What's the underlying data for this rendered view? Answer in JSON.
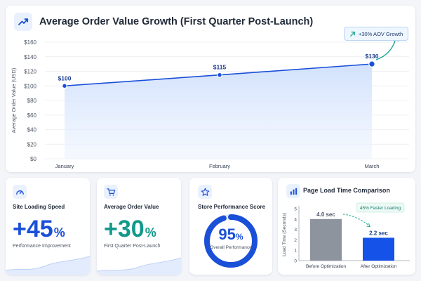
{
  "main": {
    "title": "Average Order Value Growth (First Quarter Post-Launch)",
    "badge": "+30% AOV Growth"
  },
  "chart_data": [
    {
      "type": "area",
      "title": "Average Order Value Growth (First Quarter Post-Launch)",
      "ylabel": "Average Order Value (USD)",
      "categories": [
        "January",
        "February",
        "March"
      ],
      "values": [
        100,
        115,
        130
      ],
      "data_labels": [
        "$100",
        "$115",
        "$130"
      ],
      "yticks": [
        "$0",
        "$20",
        "$40",
        "$60",
        "$80",
        "$100",
        "$120",
        "$140",
        "$160"
      ],
      "ylim": [
        0,
        160
      ],
      "grid": true,
      "annotation": "+30% AOV Growth",
      "colors": {
        "line": "#1a4fd8",
        "fill": "#dbe8fd",
        "arrow": "#14a58c"
      }
    },
    {
      "type": "bar",
      "title": "Page Load Time Comparison",
      "ylabel": "Load Time (Seconds)",
      "categories": [
        "Before Optimization",
        "After Optimization"
      ],
      "values": [
        4.0,
        2.2
      ],
      "data_labels": [
        "4.0 sec",
        "2.2 sec"
      ],
      "yticks": [
        "0",
        "1",
        "2",
        "3",
        "4",
        "5"
      ],
      "ylim": [
        0,
        5
      ],
      "annotation": "45% Faster Loading",
      "colors": {
        "before": "#8e949e",
        "after": "#1452e8",
        "arrow": "#14a58c"
      }
    }
  ],
  "cards": {
    "speed": {
      "title": "Site Loading Speed",
      "value": "+45",
      "unit": "%",
      "subtitle": "Performance Improvement",
      "color": "#1a4fd8",
      "icon": "speedometer-icon"
    },
    "aov": {
      "title": "Average Order Value",
      "value": "+30",
      "unit": "%",
      "subtitle": "First Quarter Post-Launch",
      "color": "#12998a",
      "icon": "cart-icon"
    },
    "score": {
      "title": "Store Performance Score",
      "value": "95",
      "unit": "%",
      "label": "Overall Performance",
      "fraction": 0.95,
      "icon": "star-icon"
    },
    "load": {
      "title": "Page Load Time Comparison",
      "icon": "bar-chart-icon"
    }
  }
}
